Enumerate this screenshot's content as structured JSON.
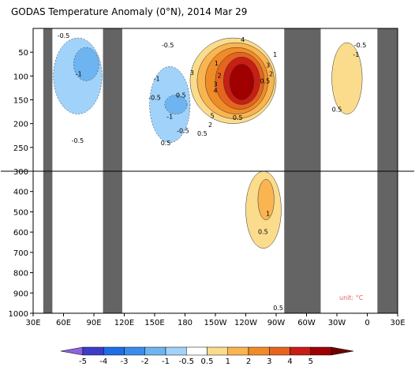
{
  "chart_data": {
    "type": "heatmap",
    "title": "GODAS Temperature Anomaly (0°N), 2014 Mar 29",
    "unit_note": "unit: °C",
    "x_ticks": [
      {
        "lon": 30,
        "label": "30E"
      },
      {
        "lon": 60,
        "label": "60E"
      },
      {
        "lon": 90,
        "label": "90E"
      },
      {
        "lon": 120,
        "label": "120E"
      },
      {
        "lon": 150,
        "label": "150E"
      },
      {
        "lon": 180,
        "label": "180"
      },
      {
        "lon": 210,
        "label": "150W"
      },
      {
        "lon": 240,
        "label": "120W"
      },
      {
        "lon": 270,
        "label": "90W"
      },
      {
        "lon": 300,
        "label": "60W"
      },
      {
        "lon": 330,
        "label": "30W"
      },
      {
        "lon": 360,
        "label": "0"
      },
      {
        "lon": 390,
        "label": "30E"
      }
    ],
    "y_ticks_upper": [
      {
        "depth": 50,
        "label": "50"
      },
      {
        "depth": 100,
        "label": "100"
      },
      {
        "depth": 150,
        "label": "150"
      },
      {
        "depth": 200,
        "label": "200"
      },
      {
        "depth": 250,
        "label": "250"
      },
      {
        "depth": 300,
        "label": "300"
      }
    ],
    "y_ticks_lower": [
      {
        "depth": 400,
        "label": "400"
      },
      {
        "depth": 500,
        "label": "500"
      },
      {
        "depth": 600,
        "label": "600"
      },
      {
        "depth": 700,
        "label": "700"
      },
      {
        "depth": 800,
        "label": "800"
      },
      {
        "depth": 900,
        "label": "900"
      },
      {
        "depth": 1000,
        "label": "1000"
      }
    ],
    "xlim": [
      30,
      390
    ],
    "ylim": [
      0,
      1000
    ],
    "y_break_depth": 300,
    "land_masks": [
      {
        "from_lon": 40,
        "to_lon": 49,
        "from_depth": 0,
        "to_depth": 1000
      },
      {
        "from_lon": 99,
        "to_lon": 118,
        "from_depth": 0,
        "to_depth": 1000
      },
      {
        "from_lon": 278,
        "to_lon": 314,
        "from_depth": 0,
        "to_depth": 1000
      },
      {
        "from_lon": 370,
        "to_lon": 390,
        "from_depth": 0,
        "to_depth": 1000
      }
    ],
    "anomaly_regions": [
      {
        "level": 0.5,
        "lon": [
          185,
          270
        ],
        "depth": [
          20,
          200
        ]
      },
      {
        "level": 1,
        "lon": [
          192,
          268
        ],
        "depth": [
          30,
          190
        ]
      },
      {
        "level": 2,
        "lon": [
          200,
          262
        ],
        "depth": [
          40,
          180
        ]
      },
      {
        "level": 3,
        "lon": [
          210,
          258
        ],
        "depth": [
          50,
          170
        ]
      },
      {
        "level": 4,
        "lon": [
          218,
          254
        ],
        "depth": [
          60,
          160
        ]
      },
      {
        "level": 5,
        "lon": [
          224,
          248
        ],
        "depth": [
          75,
          150
        ]
      },
      {
        "level": 0.5,
        "lon": [
          240,
          275
        ],
        "depth": [
          300,
          680
        ]
      },
      {
        "level": 1,
        "lon": [
          252,
          268
        ],
        "depth": [
          340,
          540
        ]
      },
      {
        "level": -0.5,
        "lon": [
          50,
          98
        ],
        "depth": [
          20,
          180
        ]
      },
      {
        "level": -1,
        "lon": [
          70,
          95
        ],
        "depth": [
          40,
          110
        ]
      },
      {
        "level": -0.5,
        "lon": [
          145,
          185
        ],
        "depth": [
          80,
          240
        ]
      },
      {
        "level": -1,
        "lon": [
          160,
          182
        ],
        "depth": [
          140,
          180
        ]
      },
      {
        "level": 0.5,
        "lon": [
          325,
          355
        ],
        "depth": [
          30,
          180
        ]
      }
    ],
    "contour_labels": [
      {
        "lon": 60,
        "depth": 20,
        "text": "-0.5"
      },
      {
        "lon": 75,
        "depth": 100,
        "text": "-1"
      },
      {
        "lon": 74,
        "depth": 240,
        "text": "-0.5"
      },
      {
        "lon": 163,
        "depth": 40,
        "text": "-0.5"
      },
      {
        "lon": 152,
        "depth": 110,
        "text": "-1"
      },
      {
        "lon": 150,
        "depth": 150,
        "text": "-0.5"
      },
      {
        "lon": 161,
        "depth": 245,
        "text": "0.5"
      },
      {
        "lon": 165,
        "depth": 190,
        "text": "-1"
      },
      {
        "lon": 178,
        "depth": 220,
        "text": "-0.5"
      },
      {
        "lon": 176,
        "depth": 145,
        "text": "0.5"
      },
      {
        "lon": 187,
        "depth": 98,
        "text": "3"
      },
      {
        "lon": 211,
        "depth": 78,
        "text": "1"
      },
      {
        "lon": 210,
        "depth": 122,
        "text": "3"
      },
      {
        "lon": 210,
        "depth": 135,
        "text": "4"
      },
      {
        "lon": 214,
        "depth": 104,
        "text": "2"
      },
      {
        "lon": 237,
        "depth": 28,
        "text": "4"
      },
      {
        "lon": 262,
        "depth": 82,
        "text": "3"
      },
      {
        "lon": 265,
        "depth": 100,
        "text": "2"
      },
      {
        "lon": 259,
        "depth": 115,
        "text": "0.5"
      },
      {
        "lon": 269,
        "depth": 60,
        "text": "1"
      },
      {
        "lon": 207,
        "depth": 188,
        "text": "5"
      },
      {
        "lon": 205,
        "depth": 207,
        "text": "2"
      },
      {
        "lon": 197,
        "depth": 225,
        "text": "0.5"
      },
      {
        "lon": 232,
        "depth": 192,
        "text": "0.5"
      },
      {
        "lon": 262,
        "depth": 520,
        "text": "1"
      },
      {
        "lon": 257,
        "depth": 610,
        "text": "0.5"
      },
      {
        "lon": 272,
        "depth": 985,
        "text": "0.5"
      },
      {
        "lon": 353,
        "depth": 40,
        "text": "-0.5"
      },
      {
        "lon": 349,
        "depth": 60,
        "text": "-1"
      },
      {
        "lon": 330,
        "depth": 175,
        "text": "0.5"
      }
    ],
    "colorbar": {
      "levels": [
        "-5",
        "-4",
        "-3",
        "-2",
        "-1",
        "-0.5",
        "0.5",
        "1",
        "2",
        "3",
        "4",
        "5"
      ],
      "colors": [
        "#8c64dc",
        "#3c3cc8",
        "#1e6ee6",
        "#3c8ceb",
        "#6eb4f0",
        "#a0d2fa",
        "#ffffff",
        "#fadc8c",
        "#fab450",
        "#f08c28",
        "#e6641e",
        "#c81e14",
        "#a00000",
        "#700000"
      ]
    },
    "colors": {
      "land": "#646464",
      "neg_weak": "#a0d2fa",
      "neg_mid": "#6eb4f0",
      "pos_05": "#fadc8c",
      "pos_1": "#fab450",
      "pos_2": "#f08c28",
      "pos_3": "#e6641e",
      "pos_4": "#c81e14",
      "pos_5": "#a00000"
    }
  }
}
